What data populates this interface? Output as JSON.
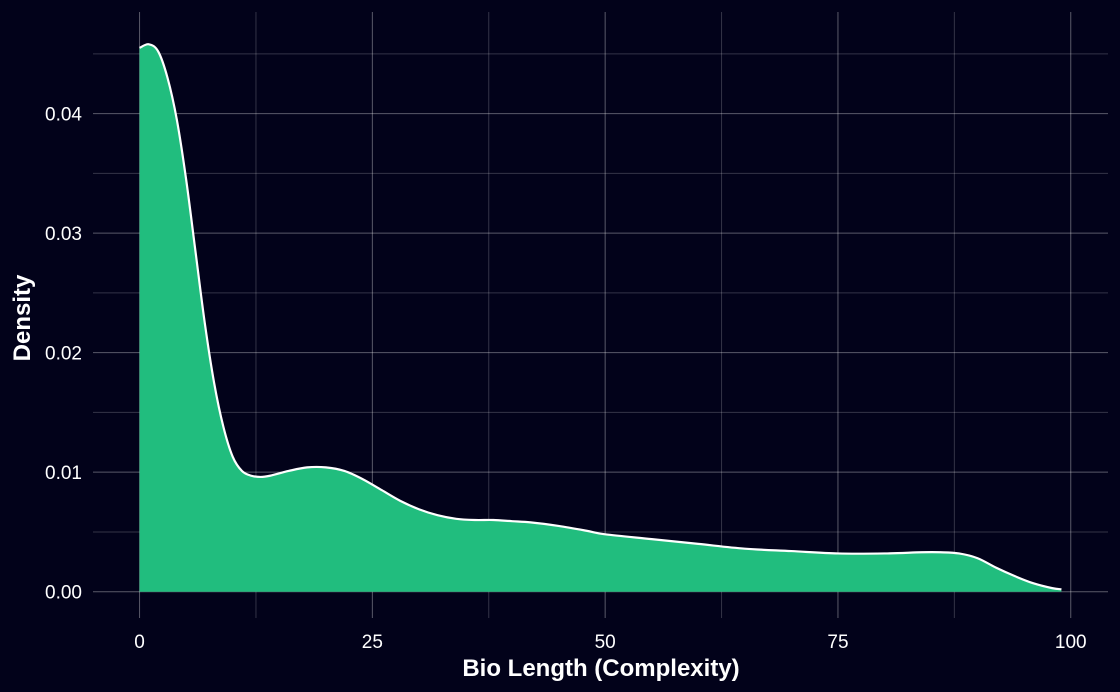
{
  "chart_data": {
    "type": "area",
    "title": "",
    "xlabel": "Bio Length (Complexity)",
    "ylabel": "Density",
    "xlim": [
      -5,
      104
    ],
    "ylim": [
      -0.0022,
      0.0485
    ],
    "x_ticks": [
      0,
      25,
      50,
      75,
      100
    ],
    "x_tick_labels": [
      "0",
      "25",
      "50",
      "75",
      "100"
    ],
    "y_ticks": [
      0.0,
      0.01,
      0.02,
      0.03,
      0.04
    ],
    "y_tick_labels": [
      "0.00",
      "0.01",
      "0.02",
      "0.03",
      "0.04"
    ],
    "grid": true,
    "legend": "none",
    "colors": {
      "background": "#02021a",
      "fill": "#21bd7e",
      "line": "#ffffff"
    },
    "series": [
      {
        "x": [
          0,
          1,
          2,
          3,
          4,
          5,
          6,
          7,
          8,
          9,
          10,
          11,
          12,
          13,
          14,
          16,
          18,
          20,
          22,
          24,
          26,
          28,
          30,
          32,
          34,
          36,
          38,
          40,
          42,
          45,
          48,
          50,
          55,
          60,
          65,
          70,
          75,
          80,
          84,
          86,
          88,
          90,
          92,
          94,
          96,
          98,
          99
        ],
        "y": [
          0.0455,
          0.0458,
          0.0452,
          0.043,
          0.0395,
          0.0345,
          0.0285,
          0.0225,
          0.0175,
          0.0138,
          0.0113,
          0.0101,
          0.0097,
          0.0096,
          0.0097,
          0.0101,
          0.0104,
          0.0104,
          0.0101,
          0.0094,
          0.0085,
          0.0076,
          0.0069,
          0.0064,
          0.0061,
          0.006,
          0.006,
          0.0059,
          0.0058,
          0.0055,
          0.0051,
          0.0048,
          0.0044,
          0.004,
          0.0036,
          0.0034,
          0.0032,
          0.0032,
          0.0033,
          0.0033,
          0.0032,
          0.0028,
          0.002,
          0.0013,
          0.0007,
          0.0003,
          0.0002
        ]
      }
    ]
  }
}
